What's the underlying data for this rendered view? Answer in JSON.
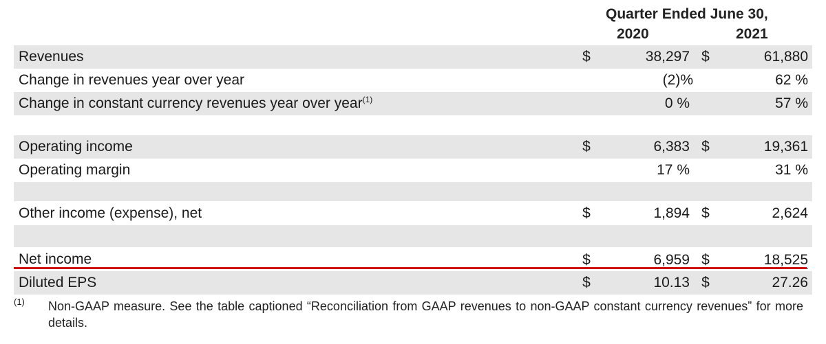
{
  "header": {
    "title": "Quarter Ended June 30,",
    "year1": "2020",
    "year2": "2021"
  },
  "rows": [
    {
      "label": "Revenues",
      "cur1": "$",
      "val1": "38,297",
      "cur2": "$",
      "val2": "61,880"
    },
    {
      "label": "Change in revenues year over year",
      "val1": "(2)%",
      "val2": "62 %"
    },
    {
      "label": "Change in constant currency revenues year over year",
      "footnote": "(1)",
      "val1": "0 %",
      "val2": "57 %"
    },
    {
      "label": "Operating income",
      "cur1": "$",
      "val1": "6,383",
      "cur2": "$",
      "val2": "19,361"
    },
    {
      "label": "Operating margin",
      "val1": "17 %",
      "val2": "31 %"
    },
    {
      "label": "Other income (expense), net",
      "cur1": "$",
      "val1": "1,894",
      "cur2": "$",
      "val2": "2,624"
    },
    {
      "label": "Net income",
      "cur1": "$",
      "val1": "6,959",
      "cur2": "$",
      "val2": "18,525"
    },
    {
      "label": "Diluted EPS",
      "cur1": "$",
      "val1": "10.13",
      "cur2": "$",
      "val2": "27.26"
    }
  ],
  "footnote": {
    "marker": "(1)",
    "text": "Non-GAAP measure. See the table captioned “Reconciliation from GAAP revenues to non-GAAP constant currency revenues” for more details."
  },
  "colors": {
    "row_shade": "#e6e6e6",
    "highlight_line": "#cc1111"
  }
}
